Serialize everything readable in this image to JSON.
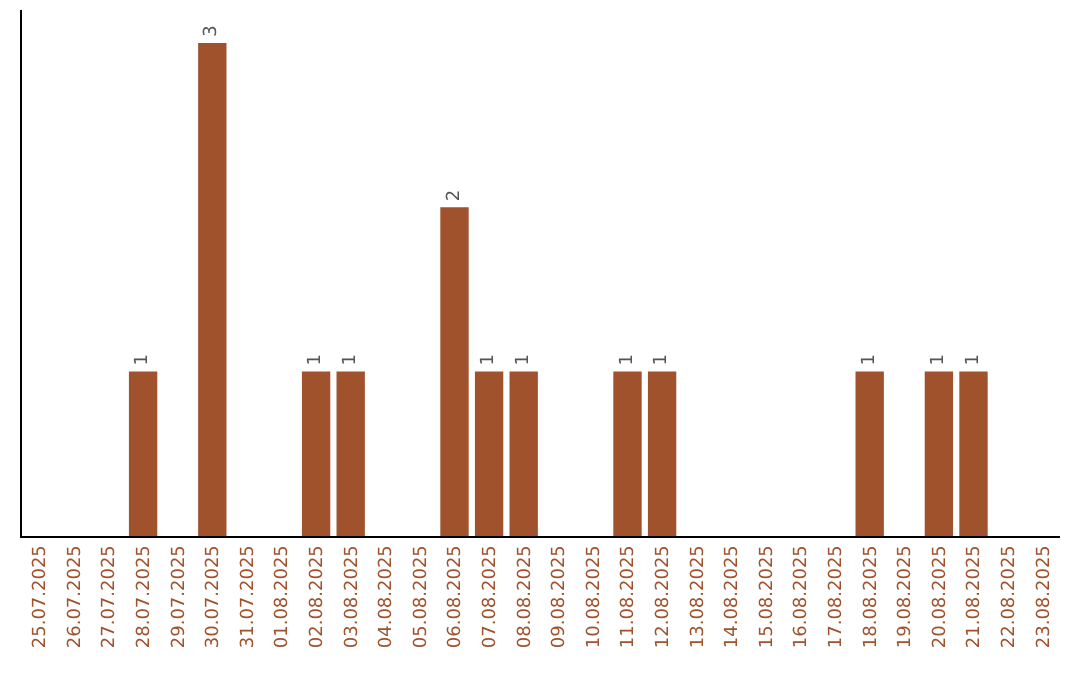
{
  "chart_data": {
    "type": "bar",
    "categories": [
      "25.07.2025",
      "26.07.2025",
      "27.07.2025",
      "28.07.2025",
      "29.07.2025",
      "30.07.2025",
      "31.07.2025",
      "01.08.2025",
      "02.08.2025",
      "03.08.2025",
      "04.08.2025",
      "05.08.2025",
      "06.08.2025",
      "07.08.2025",
      "08.08.2025",
      "09.08.2025",
      "10.08.2025",
      "11.08.2025",
      "12.08.2025",
      "13.08.2025",
      "14.08.2025",
      "15.08.2025",
      "16.08.2025",
      "17.08.2025",
      "18.08.2025",
      "19.08.2025",
      "20.08.2025",
      "21.08.2025",
      "22.08.2025",
      "23.08.2025"
    ],
    "values": [
      0,
      0,
      0,
      1,
      0,
      3,
      0,
      0,
      1,
      1,
      0,
      0,
      2,
      1,
      1,
      0,
      0,
      1,
      1,
      0,
      0,
      0,
      0,
      0,
      1,
      0,
      1,
      1,
      0,
      0
    ],
    "value_labels": [
      null,
      null,
      null,
      "1",
      null,
      "3",
      null,
      null,
      "1",
      "1",
      null,
      null,
      "2",
      "1",
      "1",
      null,
      null,
      "1",
      "1",
      null,
      null,
      null,
      null,
      null,
      "1",
      null,
      "1",
      "1",
      null,
      null
    ],
    "color": "#a0522d",
    "ylim": [
      0,
      3.2
    ],
    "tick_labels": "x",
    "legend": false
  }
}
